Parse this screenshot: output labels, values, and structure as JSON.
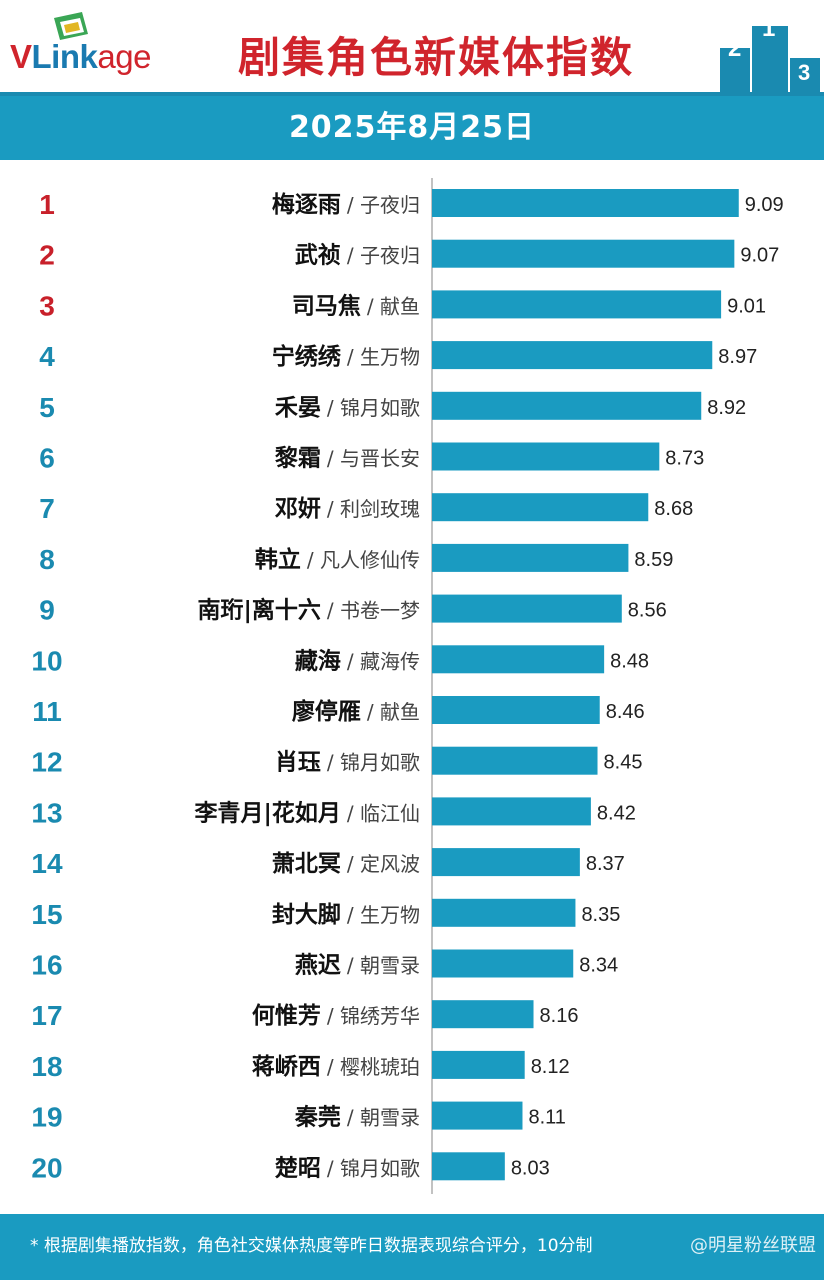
{
  "header": {
    "logo_text_v": "V",
    "logo_text_link": "Link",
    "logo_text_age": "age",
    "title": "剧集角色新媒体指数",
    "podium_labels": [
      "2",
      "1",
      "3"
    ]
  },
  "date": "2025年8月25日",
  "colors": {
    "bar": "#1a9bc1",
    "rank_top": "#c8202a",
    "rank_other": "#1a8ab0",
    "title": "#d0242c"
  },
  "chart_data": {
    "type": "bar",
    "orientation": "horizontal",
    "xlim": [
      7.7,
      9.15
    ],
    "grid": false,
    "rows": [
      {
        "rank": "1",
        "character": "梅逐雨",
        "drama": "子夜归",
        "value": 9.09
      },
      {
        "rank": "2",
        "character": "武祯",
        "drama": "子夜归",
        "value": 9.07
      },
      {
        "rank": "3",
        "character": "司马焦",
        "drama": "献鱼",
        "value": 9.01
      },
      {
        "rank": "4",
        "character": "宁绣绣",
        "drama": "生万物",
        "value": 8.97
      },
      {
        "rank": "5",
        "character": "禾晏",
        "drama": "锦月如歌",
        "value": 8.92
      },
      {
        "rank": "6",
        "character": "黎霜",
        "drama": "与晋长安",
        "value": 8.73
      },
      {
        "rank": "7",
        "character": "邓妍",
        "drama": "利剑玫瑰",
        "value": 8.68
      },
      {
        "rank": "8",
        "character": "韩立",
        "drama": "凡人修仙传",
        "value": 8.59
      },
      {
        "rank": "9",
        "character": "南珩|离十六",
        "drama": "书卷一梦",
        "value": 8.56
      },
      {
        "rank": "10",
        "character": "藏海",
        "drama": "藏海传",
        "value": 8.48
      },
      {
        "rank": "11",
        "character": "廖停雁",
        "drama": "献鱼",
        "value": 8.46
      },
      {
        "rank": "12",
        "character": "肖珏",
        "drama": "锦月如歌",
        "value": 8.45
      },
      {
        "rank": "13",
        "character": "李青月|花如月",
        "drama": "临江仙",
        "value": 8.42
      },
      {
        "rank": "14",
        "character": "萧北冥",
        "drama": "定风波",
        "value": 8.37
      },
      {
        "rank": "15",
        "character": "封大脚",
        "drama": "生万物",
        "value": 8.35
      },
      {
        "rank": "16",
        "character": "燕迟",
        "drama": "朝雪录",
        "value": 8.34
      },
      {
        "rank": "17",
        "character": "何惟芳",
        "drama": "锦绣芳华",
        "value": 8.16
      },
      {
        "rank": "18",
        "character": "蒋峤西",
        "drama": "樱桃琥珀",
        "value": 8.12
      },
      {
        "rank": "19",
        "character": "秦莞",
        "drama": "朝雪录",
        "value": 8.11
      },
      {
        "rank": "20",
        "character": "楚昭",
        "drama": "锦月如歌",
        "value": 8.03
      }
    ]
  },
  "footer": {
    "note": "* 根据剧集播放指数，角色社交媒体热度等昨日数据表现综合评分，10分制",
    "watermark": "@明星粉丝联盟"
  }
}
